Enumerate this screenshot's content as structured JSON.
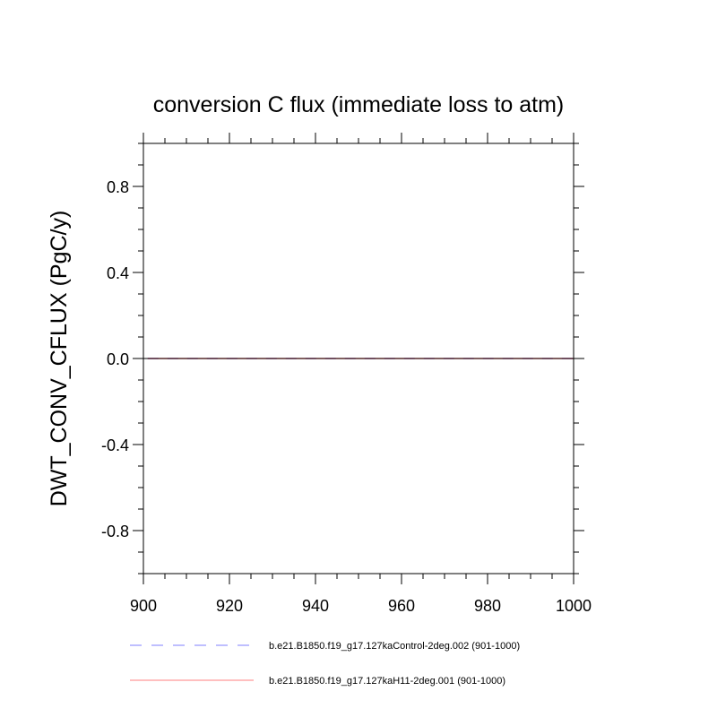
{
  "chart_data": {
    "type": "line",
    "title": "conversion C flux (immediate loss to atm)",
    "xlabel": "",
    "ylabel": "DWT_CONV_CFLUX  (PgC/y)",
    "xlim": [
      900,
      1000
    ],
    "ylim": [
      -1.0,
      1.0
    ],
    "x_ticks": [
      900,
      920,
      940,
      960,
      980,
      1000
    ],
    "y_ticks": [
      -0.8,
      -0.4,
      0.0,
      0.4,
      0.8
    ],
    "x_tick_labels": [
      "900",
      "920",
      "940",
      "960",
      "980",
      "1000"
    ],
    "y_tick_labels": [
      "-0.8",
      "-0.4",
      "0.0",
      "0.4",
      "0.8"
    ],
    "reference_line_y": 0.0,
    "grid": false,
    "legend_position": "bottom",
    "series": [
      {
        "name": "b.e21.B1850.f19_g17.127kaControl-2deg.002 (901-1000)",
        "color": "#7f7fff",
        "dash": "dashed",
        "x": [
          901,
          1000
        ],
        "y": [
          0.0,
          0.0
        ]
      },
      {
        "name": "b.e21.B1850.f19_g17.127kaH11-2deg.001 (901-1000)",
        "color": "#ff7f7f",
        "dash": "solid",
        "x": [
          901,
          1000
        ],
        "y": [
          0.0,
          0.0
        ]
      }
    ]
  }
}
